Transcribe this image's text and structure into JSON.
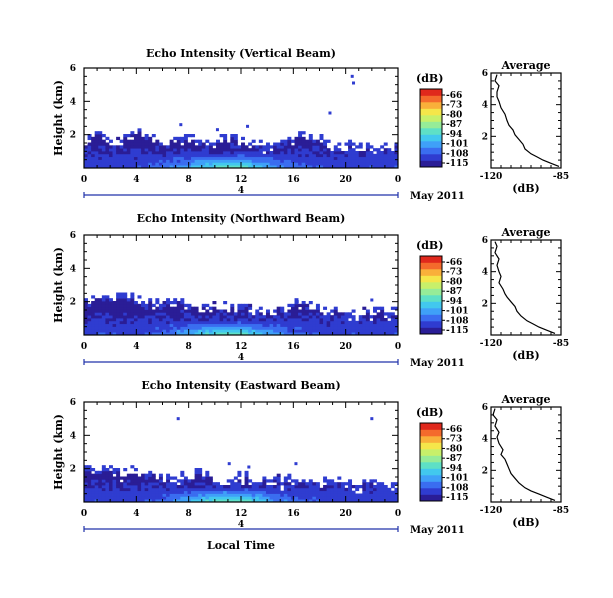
{
  "colors": {
    "colormap": [
      "#2a1d96",
      "#2f3cd0",
      "#3a6df0",
      "#3fa0f8",
      "#42c8ee",
      "#5ee0c6",
      "#96ec98",
      "#c8f06a",
      "#f5e64a",
      "#f9b03a",
      "#f46a2c",
      "#e0281c"
    ],
    "date_axis_line": "#2233aa"
  },
  "chart_data": [
    {
      "type": "heatmap",
      "title": "Echo Intensity (Vertical Beam)",
      "ylabel": "Height (km)",
      "xlabel": "",
      "x_ticks": [
        "0",
        "4",
        "8",
        "12",
        "16",
        "20",
        "0"
      ],
      "xlim": [
        0,
        24
      ],
      "y_ticks": [
        "2",
        "4",
        "6"
      ],
      "ylim": [
        0,
        6
      ],
      "colorbar": {
        "unit": "(dB)",
        "labels": [
          "-66",
          "-73",
          "-80",
          "-87",
          "-94",
          "-101",
          "-108",
          "-115"
        ],
        "range": [
          -115,
          -66
        ]
      },
      "layer_top_km": [
        1.9,
        2.1,
        1.8,
        1.9,
        2.2,
        1.9,
        1.7,
        1.8,
        2.0,
        1.6,
        1.7,
        1.9,
        1.8,
        1.5,
        1.4,
        1.6,
        1.8,
        2.0,
        1.7,
        1.5,
        1.4,
        1.3,
        1.2,
        1.3,
        1.2
      ],
      "scatter_echoes": [
        [
          20.5,
          5.5
        ],
        [
          20.6,
          5.1
        ],
        [
          18.8,
          3.3
        ],
        [
          12.5,
          2.5
        ],
        [
          10.2,
          2.3
        ],
        [
          7.4,
          2.6
        ]
      ],
      "date_axis": {
        "label": "4",
        "unit_label": "May 2011"
      },
      "average_profile": {
        "title": "Average",
        "xlabel": "(dB)",
        "xlim": [
          -120,
          -85
        ],
        "x_ticks": [
          "-120",
          "-85"
        ],
        "ylim": [
          0,
          6
        ],
        "y_ticks": [
          "2",
          "4",
          "6"
        ],
        "db": [
          -86,
          -90,
          -94,
          -97,
          -100,
          -103,
          -104,
          -106,
          -108,
          -109,
          -111,
          -112,
          -113,
          -115,
          -116,
          -117,
          -117,
          -116,
          -118,
          -117
        ],
        "height_km": [
          0.1,
          0.3,
          0.5,
          0.7,
          0.9,
          1.2,
          1.5,
          1.8,
          2.1,
          2.4,
          2.7,
          3.0,
          3.4,
          3.8,
          4.2,
          4.5,
          4.8,
          5.2,
          5.5,
          5.9
        ]
      }
    },
    {
      "type": "heatmap",
      "title": "Echo Intensity (Northward Beam)",
      "ylabel": "Height (km)",
      "xlabel": "",
      "x_ticks": [
        "0",
        "4",
        "8",
        "12",
        "16",
        "20",
        "0"
      ],
      "xlim": [
        0,
        24
      ],
      "y_ticks": [
        "2",
        "4",
        "6"
      ],
      "ylim": [
        0,
        6
      ],
      "colorbar": {
        "unit": "(dB)",
        "labels": [
          "-66",
          "-73",
          "-80",
          "-87",
          "-94",
          "-101",
          "-108",
          "-115"
        ],
        "range": [
          -115,
          -66
        ]
      },
      "layer_top_km": [
        2.0,
        2.3,
        2.1,
        2.4,
        2.2,
        2.0,
        1.9,
        2.1,
        2.0,
        1.9,
        1.7,
        1.8,
        1.8,
        1.6,
        1.5,
        1.7,
        1.9,
        1.9,
        1.6,
        1.5,
        1.5,
        1.4,
        1.3,
        1.6,
        1.3
      ],
      "scatter_echoes": [
        [
          22.0,
          2.1
        ],
        [
          16.3,
          2.0
        ]
      ],
      "date_axis": {
        "label": "4",
        "unit_label": "May 2011"
      },
      "average_profile": {
        "title": "Average",
        "xlabel": "(dB)",
        "xlim": [
          -120,
          -85
        ],
        "x_ticks": [
          "-120",
          "-85"
        ],
        "ylim": [
          0,
          6
        ],
        "y_ticks": [
          "2",
          "4",
          "6"
        ],
        "db": [
          -88,
          -92,
          -96,
          -99,
          -102,
          -105,
          -107,
          -108,
          -110,
          -112,
          -113,
          -114,
          -116,
          -115,
          -116,
          -117,
          -116,
          -118,
          -117,
          -118
        ],
        "height_km": [
          0.1,
          0.3,
          0.5,
          0.7,
          0.9,
          1.2,
          1.5,
          1.8,
          2.1,
          2.4,
          2.6,
          2.9,
          3.3,
          3.7,
          4.0,
          4.4,
          4.8,
          5.2,
          5.6,
          5.9
        ]
      }
    },
    {
      "type": "heatmap",
      "title": "Echo Intensity (Eastward Beam)",
      "ylabel": "Height (km)",
      "xlabel": "Local Time",
      "x_ticks": [
        "0",
        "4",
        "8",
        "12",
        "16",
        "20",
        "0"
      ],
      "xlim": [
        0,
        24
      ],
      "y_ticks": [
        "2",
        "4",
        "6"
      ],
      "ylim": [
        0,
        6
      ],
      "colorbar": {
        "unit": "(dB)",
        "labels": [
          "-66",
          "-73",
          "-80",
          "-87",
          "-94",
          "-101",
          "-108",
          "-115"
        ],
        "range": [
          -115,
          -66
        ]
      },
      "layer_top_km": [
        2.4,
        1.8,
        2.0,
        1.7,
        2.1,
        1.8,
        1.6,
        1.5,
        1.6,
        1.9,
        1.5,
        1.4,
        1.6,
        1.3,
        1.4,
        1.3,
        1.5,
        1.3,
        1.2,
        1.4,
        1.2,
        1.1,
        1.2,
        1.1,
        1.0
      ],
      "scatter_echoes": [
        [
          7.2,
          5.0
        ],
        [
          22.0,
          5.0
        ],
        [
          16.2,
          2.3
        ],
        [
          11.1,
          2.3
        ],
        [
          12.6,
          2.1
        ]
      ],
      "date_axis": {
        "label": "4",
        "unit_label": "May 2011"
      },
      "average_profile": {
        "title": "Average",
        "xlabel": "(dB)",
        "xlim": [
          -120,
          -85
        ],
        "x_ticks": [
          "-120",
          "-85"
        ],
        "ylim": [
          0,
          6
        ],
        "y_ticks": [
          "2",
          "4",
          "6"
        ],
        "db": [
          -88,
          -92,
          -96,
          -100,
          -103,
          -106,
          -108,
          -110,
          -111,
          -112,
          -113,
          -115,
          -114,
          -116,
          -117,
          -116,
          -118,
          -117,
          -119,
          -118
        ],
        "height_km": [
          0.1,
          0.3,
          0.5,
          0.7,
          0.9,
          1.2,
          1.5,
          1.8,
          2.1,
          2.4,
          2.7,
          3.0,
          3.3,
          3.7,
          4.1,
          4.4,
          4.8,
          5.2,
          5.5,
          5.9
        ]
      }
    }
  ]
}
